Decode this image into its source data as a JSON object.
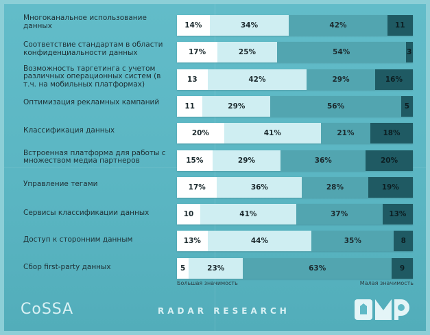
{
  "chart_data": {
    "type": "bar",
    "orientation": "horizontal",
    "stacked": true,
    "normalized": true,
    "categories": [
      "Многоканальное использование данных",
      "Соответствие стандартам в области конфиденциальности данных",
      "Возможность таргетинга с учетом различных операционных систем (в т.ч. на мобильных платформах)",
      "Оптимизация рекламных кампаний",
      "Классификация данных",
      "Встроенная платформа для работы с множеством медиа партнеров",
      "Управление тегами",
      "Сервисы классификации данных",
      "Доступ к сторонним данным",
      "Сбор first-party данных"
    ],
    "series": [
      {
        "values": [
          14,
          17,
          13,
          11,
          20,
          15,
          17,
          10,
          13,
          5
        ],
        "labels": [
          "14%",
          "17%",
          "13",
          "11",
          "20%",
          "15%",
          "17%",
          "10",
          "13%",
          "5"
        ],
        "color": "#ffffff"
      },
      {
        "values": [
          34,
          25,
          42,
          29,
          41,
          29,
          36,
          41,
          44,
          23
        ],
        "labels": [
          "34%",
          "25%",
          "42%",
          "29%",
          "41%",
          "29%",
          "36%",
          "41%",
          "44%",
          "23%"
        ],
        "color": "#cfeef2"
      },
      {
        "values": [
          42,
          54,
          29,
          56,
          21,
          36,
          28,
          37,
          35,
          63
        ],
        "labels": [
          "42%",
          "54%",
          "29%",
          "56%",
          "21%",
          "36%",
          "28%",
          "37%",
          "35%",
          "63%"
        ],
        "color": "#52a5b0"
      },
      {
        "values": [
          11,
          3,
          16,
          5,
          18,
          20,
          19,
          13,
          8,
          9
        ],
        "labels": [
          "11",
          "3",
          "16%",
          "5",
          "18%",
          "20%",
          "19%",
          "13%",
          "8",
          "9"
        ],
        "color": "#1f5a63"
      }
    ],
    "legend": {
      "left": "Большая значимость",
      "right": "Малая значимость"
    },
    "brands": {
      "left_logo": "CoSSA",
      "center": "RADAR RESEARCH",
      "right_logo": "DMP"
    }
  }
}
